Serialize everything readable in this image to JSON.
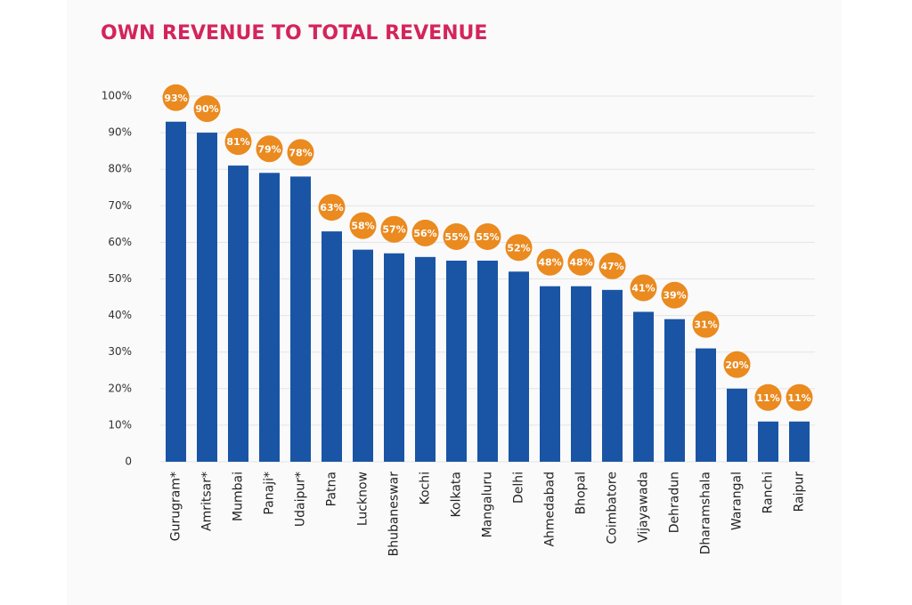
{
  "chart_data": {
    "type": "bar",
    "title": "OWN REVENUE TO TOTAL REVENUE",
    "categories": [
      "Gurugram*",
      "Amritsar*",
      "Mumbai",
      "Panaji*",
      "Udaipur*",
      "Patna",
      "Lucknow",
      "Bhubaneswar",
      "Kochi",
      "Kolkata",
      "Mangaluru",
      "Delhi",
      "Ahmedabad",
      "Bhopal",
      "Coimbatore",
      "Vijayawada",
      "Dehradun",
      "Dharamshala",
      "Warangal",
      "Ranchi",
      "Raipur"
    ],
    "values": [
      93,
      90,
      81,
      79,
      78,
      63,
      58,
      57,
      56,
      55,
      55,
      52,
      48,
      48,
      47,
      41,
      39,
      31,
      20,
      11,
      11
    ],
    "value_labels": [
      "93%",
      "90%",
      "81%",
      "79%",
      "78%",
      "63%",
      "58%",
      "57%",
      "56%",
      "55%",
      "55%",
      "52%",
      "48%",
      "48%",
      "47%",
      "41%",
      "39%",
      "31%",
      "20%",
      "11%",
      "11%"
    ],
    "color": "#1a55a5",
    "label_color": "#ea8a1f",
    "title_color": "#d4245c",
    "ylim": [
      0,
      100
    ],
    "yticks": [
      0,
      {
        "value": 10,
        "label": "10%"
      },
      {
        "value": 20,
        "label": "20%"
      },
      {
        "value": 30,
        "label": "30%"
      },
      {
        "value": 40,
        "label": "40%"
      },
      {
        "value": 50,
        "label": "50%"
      },
      {
        "value": 60,
        "label": "60%"
      },
      {
        "value": 70,
        "label": "70%"
      },
      {
        "value": 80,
        "label": "80%"
      },
      {
        "value": 90,
        "label": "90%"
      },
      {
        "value": 100,
        "label": "100%"
      }
    ],
    "grid": true
  }
}
